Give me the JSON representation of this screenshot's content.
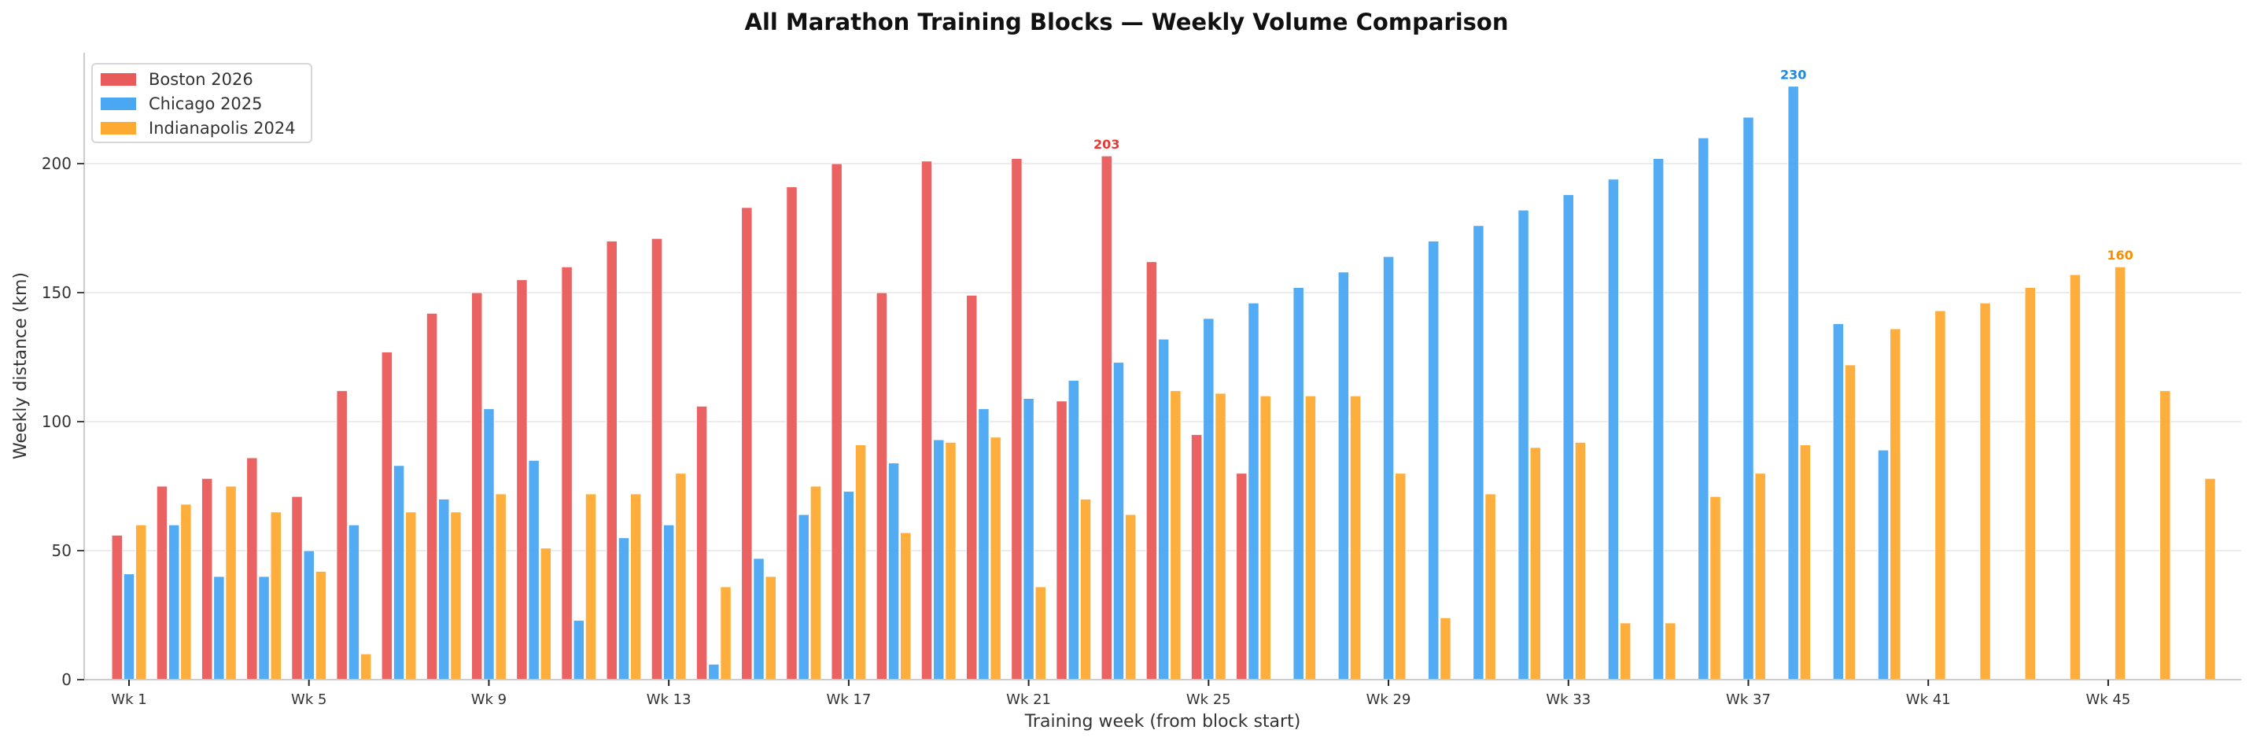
{
  "chart_data": {
    "type": "bar",
    "title": "All Marathon Training Blocks — Weekly Volume Comparison",
    "xlabel": "Training week (from block start)",
    "ylabel": "Weekly distance (km)",
    "ylim": [
      0,
      240
    ],
    "yticks": [
      0,
      50,
      100,
      150,
      200
    ],
    "grid": "horizontal",
    "legend_position": "top-left",
    "categories": [
      "Wk 1",
      "Wk 2",
      "Wk 3",
      "Wk 4",
      "Wk 5",
      "Wk 6",
      "Wk 7",
      "Wk 8",
      "Wk 9",
      "Wk 10",
      "Wk 11",
      "Wk 12",
      "Wk 13",
      "Wk 14",
      "Wk 15",
      "Wk 16",
      "Wk 17",
      "Wk 18",
      "Wk 19",
      "Wk 20",
      "Wk 21",
      "Wk 22",
      "Wk 23",
      "Wk 24",
      "Wk 25",
      "Wk 26",
      "Wk 27",
      "Wk 28",
      "Wk 29",
      "Wk 30",
      "Wk 31",
      "Wk 32",
      "Wk 33",
      "Wk 34",
      "Wk 35",
      "Wk 36",
      "Wk 37",
      "Wk 38",
      "Wk 39",
      "Wk 40",
      "Wk 41",
      "Wk 42",
      "Wk 43",
      "Wk 44",
      "Wk 45",
      "Wk 46",
      "Wk 47"
    ],
    "xtick_labels": [
      "Wk 1",
      "Wk 5",
      "Wk 9",
      "Wk 13",
      "Wk 17",
      "Wk 21",
      "Wk 25",
      "Wk 29",
      "Wk 33",
      "Wk 37",
      "Wk 41",
      "Wk 45"
    ],
    "xtick_weeks": [
      1,
      5,
      9,
      13,
      17,
      21,
      25,
      29,
      33,
      37,
      41,
      45
    ],
    "series": [
      {
        "name": "Boston 2026",
        "color": "#e95a5a",
        "annotation_color": "#e53935",
        "values": [
          56,
          75,
          78,
          86,
          71,
          112,
          127,
          142,
          150,
          155,
          160,
          170,
          171,
          106,
          183,
          191,
          200,
          150,
          201,
          149,
          202,
          108,
          203,
          162,
          95,
          80,
          null,
          null,
          null,
          null,
          null,
          null,
          null,
          null,
          null,
          null,
          null,
          null,
          null,
          null,
          null,
          null,
          null,
          null,
          null,
          null,
          null
        ],
        "peak": {
          "week": 23,
          "label": "203"
        }
      },
      {
        "name": "Chicago 2025",
        "color": "#4aa8f2",
        "annotation_color": "#1e88e5",
        "values": [
          41,
          60,
          40,
          40,
          50,
          60,
          83,
          70,
          105,
          85,
          23,
          55,
          60,
          6,
          47,
          64,
          73,
          84,
          93,
          105,
          109,
          116,
          123,
          132,
          140,
          146,
          152,
          158,
          164,
          170,
          176,
          182,
          188,
          194,
          202,
          210,
          218,
          230,
          138,
          89,
          null,
          null,
          null,
          null,
          null,
          null,
          null
        ],
        "peak": {
          "week": 38,
          "label": "230"
        }
      },
      {
        "name": "Indianapolis 2024",
        "color": "#fdaa33",
        "annotation_color": "#fb8c00",
        "values": [
          60,
          68,
          75,
          65,
          42,
          10,
          65,
          65,
          72,
          51,
          72,
          72,
          80,
          36,
          40,
          75,
          91,
          57,
          92,
          94,
          36,
          70,
          64,
          112,
          111,
          110,
          110,
          110,
          80,
          24,
          72,
          90,
          92,
          22,
          22,
          71,
          80,
          91,
          122,
          136,
          143,
          146,
          152,
          157,
          160,
          112,
          78
        ],
        "peak": {
          "week": 45,
          "label": "160"
        }
      }
    ]
  }
}
